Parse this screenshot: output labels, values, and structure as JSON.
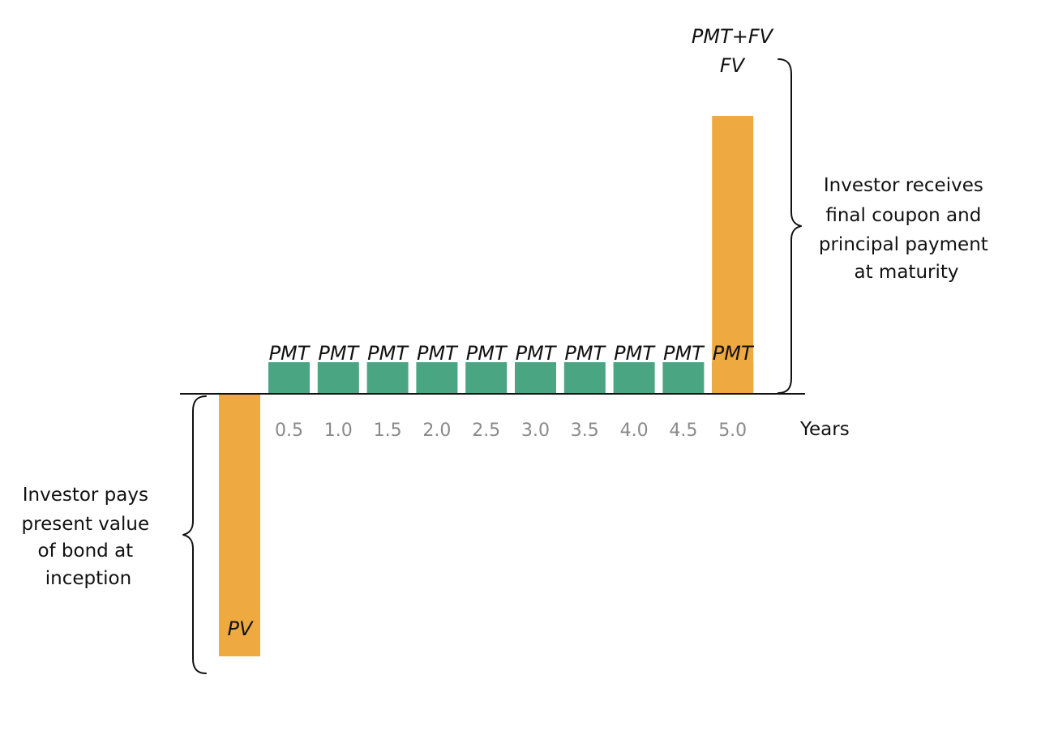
{
  "colors": {
    "coupon": "#4aa583",
    "principal": "#eea940",
    "axis": "#111111",
    "tick_text": "#8a8a8a"
  },
  "chart_data": {
    "type": "bar",
    "periods": [
      "0.5",
      "1.0",
      "1.5",
      "2.0",
      "2.5",
      "3.0",
      "3.5",
      "4.0",
      "4.5",
      "5.0"
    ],
    "coupon_label": "PMT",
    "coupon_count": 10,
    "pv_label": "PV",
    "final_labels": [
      "PMT+FV",
      "FV"
    ],
    "xlabel": "Years",
    "coupon_height": 1,
    "fv_height": 9.0,
    "pv_height": 8.5
  },
  "annotations": {
    "left": [
      "Investor pays",
      "present value",
      "of bond at",
      "inception"
    ],
    "right": [
      "Investor receives",
      "final coupon and",
      "principal payment",
      "at maturity"
    ]
  }
}
